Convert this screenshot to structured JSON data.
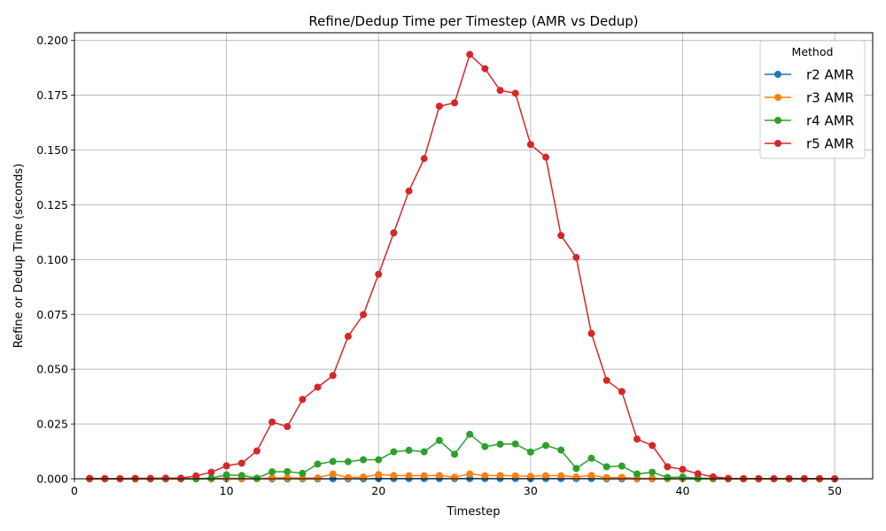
{
  "chart_data": {
    "type": "line",
    "title": "Refine/Dedup Time per Timestep (AMR vs Dedup)",
    "xlabel": "Timestep",
    "ylabel": "Refine or Dedup Time (seconds)",
    "xlim": [
      0,
      52.5
    ],
    "ylim": [
      0,
      0.2035
    ],
    "xticks": [
      0,
      10,
      20,
      30,
      40,
      50
    ],
    "xtick_labels": [
      "0",
      "10",
      "20",
      "30",
      "40",
      "50"
    ],
    "yticks": [
      0,
      0.025,
      0.05,
      0.075,
      0.1,
      0.125,
      0.15,
      0.175,
      0.2
    ],
    "ytick_labels": [
      "0.000",
      "0.025",
      "0.050",
      "0.075",
      "0.100",
      "0.125",
      "0.150",
      "0.175",
      "0.200"
    ],
    "grid": true,
    "legend": {
      "title": "Method",
      "placement": "top-right"
    },
    "x": [
      1,
      2,
      3,
      4,
      5,
      6,
      7,
      8,
      9,
      10,
      11,
      12,
      13,
      14,
      15,
      16,
      17,
      18,
      19,
      20,
      21,
      22,
      23,
      24,
      25,
      26,
      27,
      28,
      29,
      30,
      31,
      32,
      33,
      34,
      35,
      36,
      37,
      38,
      39,
      40,
      41,
      42,
      43,
      44,
      45,
      46,
      47,
      48,
      49,
      50
    ],
    "series": [
      {
        "name": "r2 AMR",
        "color": "#1f77b4",
        "values": [
          0,
          0,
          0,
          0,
          0,
          0,
          0,
          0,
          0,
          0,
          0,
          0,
          0,
          0,
          0,
          0,
          0,
          0,
          0,
          0.0001,
          0.0001,
          0.0001,
          0.0001,
          0.0001,
          0.0001,
          0.0001,
          0.0001,
          0.0001,
          0.0001,
          0.0001,
          0.0001,
          0.0001,
          0.0001,
          0.0001,
          0,
          0,
          0,
          0,
          0,
          0,
          0,
          0,
          0,
          0,
          0,
          0,
          0,
          0,
          0,
          0
        ]
      },
      {
        "name": "r3 AMR",
        "color": "#ff7f0e",
        "values": [
          0,
          0,
          0,
          0,
          0,
          0,
          0,
          0,
          0,
          0.0003,
          0.0002,
          0.0001,
          0.0004,
          0.0005,
          0.0003,
          0.0004,
          0.0022,
          0.0005,
          0.0008,
          0.0019,
          0.0015,
          0.0014,
          0.0014,
          0.0015,
          0.0007,
          0.0022,
          0.0014,
          0.0015,
          0.0013,
          0.0011,
          0.0014,
          0.0014,
          0.0008,
          0.0015,
          0.0005,
          0.0006,
          0.0002,
          0.0002,
          0.0001,
          0.0001,
          0,
          0,
          0,
          0,
          0,
          0,
          0,
          0,
          0,
          0
        ]
      },
      {
        "name": "r4 AMR",
        "color": "#2ca02c",
        "values": [
          0,
          0,
          0,
          0,
          0,
          0,
          0,
          0,
          0.0003,
          0.0018,
          0.0015,
          0.0003,
          0.0032,
          0.0033,
          0.0025,
          0.0067,
          0.0079,
          0.0078,
          0.0087,
          0.0087,
          0.0123,
          0.013,
          0.0123,
          0.0175,
          0.0112,
          0.0203,
          0.0147,
          0.0158,
          0.0159,
          0.0122,
          0.0152,
          0.0131,
          0.0047,
          0.0094,
          0.0055,
          0.0058,
          0.0022,
          0.003,
          0.0006,
          0.0008,
          0.0003,
          0.0002,
          0,
          0,
          0,
          0,
          0,
          0,
          0,
          0
        ]
      },
      {
        "name": "r5 AMR",
        "color": "#d62728",
        "values": [
          0.0002,
          0.0001,
          0.0001,
          0.0002,
          0.0002,
          0.0003,
          0.0003,
          0.0013,
          0.003,
          0.0059,
          0.0071,
          0.0127,
          0.0259,
          0.0238,
          0.0362,
          0.0418,
          0.0471,
          0.065,
          0.0749,
          0.0933,
          0.1122,
          0.1313,
          0.1461,
          0.17,
          0.1715,
          0.1936,
          0.1871,
          0.1772,
          0.1759,
          0.1525,
          0.1467,
          0.111,
          0.101,
          0.0663,
          0.0449,
          0.0398,
          0.0181,
          0.0152,
          0.0055,
          0.0043,
          0.0023,
          0.0009,
          0.0002,
          0.0001,
          0.0001,
          0.0001,
          0.0001,
          0.0001,
          0.0001,
          0
        ]
      }
    ]
  }
}
